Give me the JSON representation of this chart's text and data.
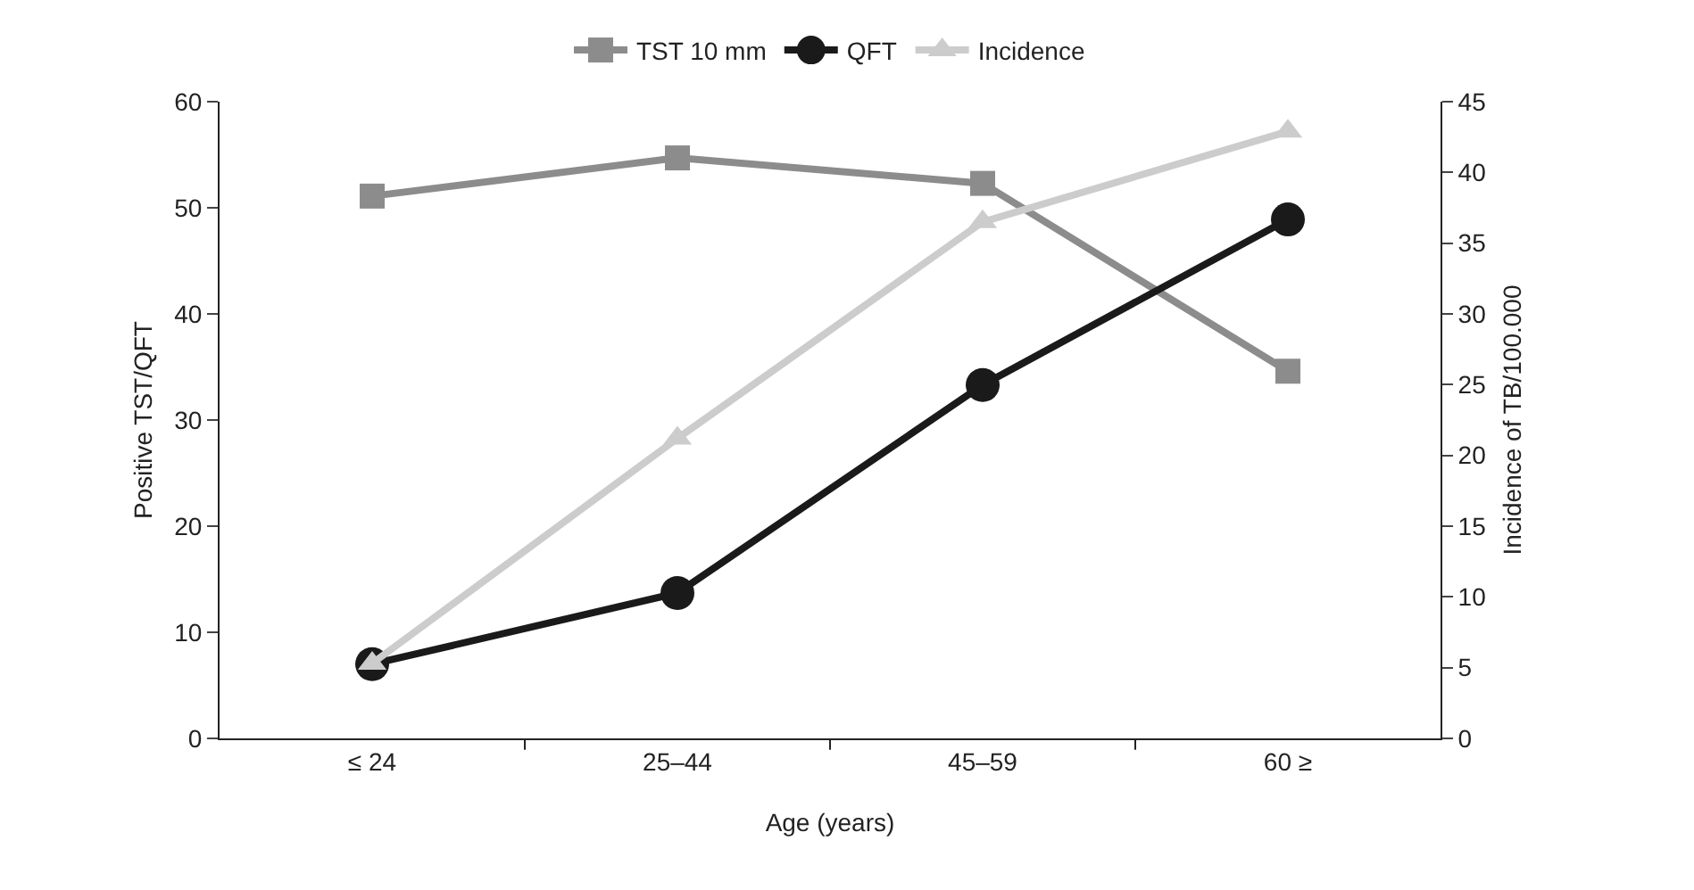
{
  "chart_data": {
    "type": "line",
    "xlabel": "Age (years)",
    "ylabel": "Positive TST/QFT",
    "y2label": "Incidence of TB/100.000",
    "categories": [
      "≤ 24",
      "25–44",
      "45–59",
      "60 ≥"
    ],
    "series": [
      {
        "name": "TST 10 mm",
        "color": "#8c8c8c",
        "marker": "square",
        "values": [
          51.1,
          54.7,
          52.3,
          34.6
        ]
      },
      {
        "name": "QFT",
        "color": "#1a1a1a",
        "marker": "circle",
        "values": [
          7.0,
          13.7,
          33.3,
          48.9
        ]
      },
      {
        "name": "Incidence",
        "color": "#cccccc",
        "marker": "triangle",
        "axis": "y2",
        "values": [
          5.3,
          21.2,
          36.5,
          42.9
        ]
      }
    ],
    "ylim": [
      0,
      60
    ],
    "yticks": [
      0,
      10,
      20,
      30,
      40,
      50,
      60
    ],
    "y2lim": [
      0,
      45
    ],
    "y2ticks": [
      0,
      5,
      10,
      15,
      20,
      25,
      30,
      35,
      40,
      45
    ],
    "grid": false,
    "legend": "top",
    "line_style": "solid"
  }
}
